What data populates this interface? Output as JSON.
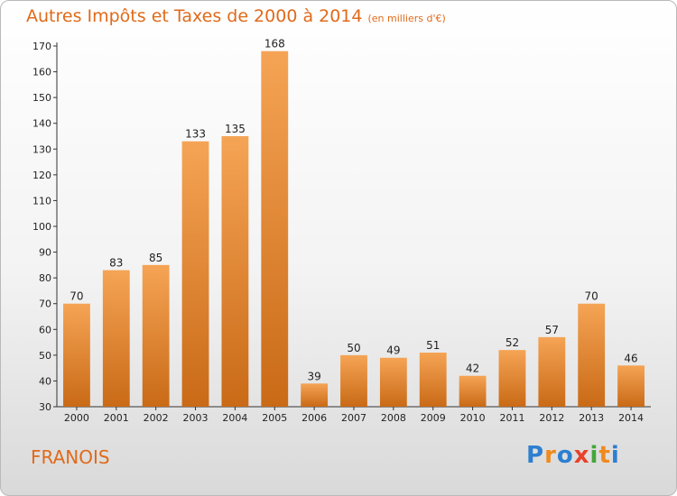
{
  "header": {
    "title": "Autres Impôts et Taxes de 2000 à 2014",
    "subtitle": "(en milliers d'€)"
  },
  "footer": {
    "place": "FRANOIS",
    "logo_text": "Proxiti"
  },
  "colors": {
    "accent": "#e06a1a",
    "bar_light": "#f5a455",
    "bar_dark": "#c96a16",
    "logo": [
      "#2d7fd0",
      "#f08a1c",
      "#2d7fd0",
      "#e8412b",
      "#45a63b",
      "#f08a1c",
      "#2d7fd0"
    ]
  },
  "chart_data": {
    "type": "bar",
    "title": "Autres Impôts et Taxes de 2000 à 2014",
    "subtitle": "(en milliers d'€)",
    "xlabel": "",
    "ylabel": "",
    "categories": [
      "2000",
      "2001",
      "2002",
      "2003",
      "2004",
      "2005",
      "2006",
      "2007",
      "2008",
      "2009",
      "2010",
      "2011",
      "2012",
      "2013",
      "2014"
    ],
    "values": [
      70,
      83,
      85,
      133,
      135,
      168,
      39,
      50,
      49,
      51,
      42,
      52,
      57,
      70,
      46
    ],
    "ylim": [
      30,
      170
    ],
    "yticks": [
      30,
      40,
      50,
      60,
      70,
      80,
      90,
      100,
      110,
      120,
      130,
      140,
      150,
      160,
      170
    ],
    "grid": false,
    "legend": "none"
  }
}
